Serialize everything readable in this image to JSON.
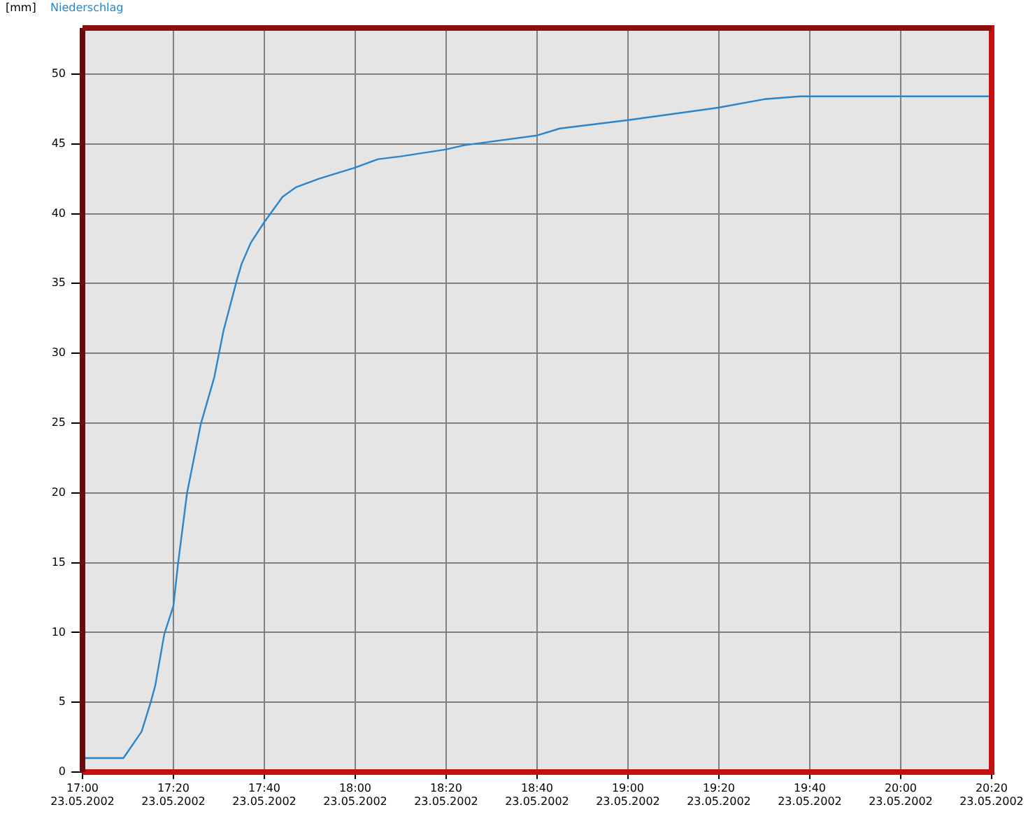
{
  "chart_data": {
    "type": "line",
    "ylabel": "[mm]",
    "legend": "top left",
    "grid": true,
    "marker": "none",
    "line_style": "solid",
    "x": [
      "2002-05-23T17:00",
      "2002-05-23T17:09",
      "2002-05-23T17:13",
      "2002-05-23T17:15",
      "2002-05-23T17:16",
      "2002-05-23T17:18",
      "2002-05-23T17:20",
      "2002-05-23T17:21",
      "2002-05-23T17:23",
      "2002-05-23T17:26",
      "2002-05-23T17:29",
      "2002-05-23T17:31",
      "2002-05-23T17:34",
      "2002-05-23T17:35",
      "2002-05-23T17:37",
      "2002-05-23T17:40",
      "2002-05-23T17:44",
      "2002-05-23T17:47",
      "2002-05-23T17:52",
      "2002-05-23T17:56",
      "2002-05-23T18:00",
      "2002-05-23T18:05",
      "2002-05-23T18:10",
      "2002-05-23T18:14",
      "2002-05-23T18:20",
      "2002-05-23T18:24",
      "2002-05-23T18:40",
      "2002-05-23T18:45",
      "2002-05-23T19:00",
      "2002-05-23T19:20",
      "2002-05-23T19:30",
      "2002-05-23T19:38",
      "2002-05-23T20:20"
    ],
    "series": [
      {
        "name": "Niederschlag",
        "color": "#2a85cc",
        "values": [
          1.0,
          1.0,
          2.9,
          5.0,
          6.2,
          9.9,
          11.9,
          14.9,
          20.0,
          24.9,
          28.3,
          31.6,
          35.3,
          36.4,
          37.9,
          39.4,
          41.2,
          41.9,
          42.5,
          42.9,
          43.3,
          43.9,
          44.1,
          44.3,
          44.6,
          44.9,
          45.6,
          46.1,
          46.7,
          47.6,
          48.2,
          48.4,
          48.4
        ]
      }
    ],
    "xlim": [
      "2002-05-23T17:00",
      "2002-05-23T20:20"
    ],
    "xticks": [
      {
        "value": "2002-05-23T17:00",
        "label": "17:00\n23.05.2002"
      },
      {
        "value": "2002-05-23T17:20",
        "label": "17:20\n23.05.2002"
      },
      {
        "value": "2002-05-23T17:40",
        "label": "17:40\n23.05.2002"
      },
      {
        "value": "2002-05-23T18:00",
        "label": "18:00\n23.05.2002"
      },
      {
        "value": "2002-05-23T18:20",
        "label": "18:20\n23.05.2002"
      },
      {
        "value": "2002-05-23T18:40",
        "label": "18:40\n23.05.2002"
      },
      {
        "value": "2002-05-23T19:00",
        "label": "19:00\n23.05.2002"
      },
      {
        "value": "2002-05-23T19:20",
        "label": "19:20\n23.05.2002"
      },
      {
        "value": "2002-05-23T19:40",
        "label": "19:40\n23.05.2002"
      },
      {
        "value": "2002-05-23T20:00",
        "label": "20:00\n23.05.2002"
      },
      {
        "value": "2002-05-23T20:20",
        "label": "20:20\n23.05.2002"
      }
    ],
    "ylim": [
      0,
      53.3
    ],
    "yticks": [
      0,
      5,
      10,
      15,
      20,
      25,
      30,
      35,
      40,
      45,
      50
    ]
  }
}
